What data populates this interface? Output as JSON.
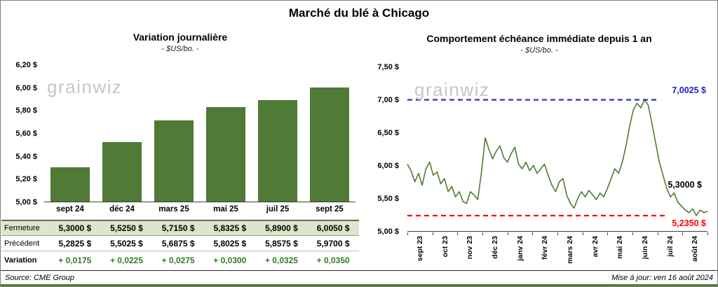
{
  "page": {
    "title": "Marché du blé à Chicago",
    "footer_left": "Source: CME Group",
    "footer_right": "Mise à jour: ven 16 août 2024",
    "watermark": "grainwiz"
  },
  "colors": {
    "bar_green": "#4f7b36",
    "line_green": "#4f7b36",
    "blue_dashed": "#2222cc",
    "red_dashed": "#ff0000",
    "table_row_green": "#dce6cc",
    "variation_green": "#2f7d21"
  },
  "chart_data": [
    {
      "type": "bar",
      "title": "Variation journalière",
      "subtitle": "- $US/bo. -",
      "categories": [
        "sept 24",
        "déc 24",
        "mars 25",
        "mai 25",
        "juil 25",
        "sept 25"
      ],
      "values": [
        5.3,
        5.525,
        5.715,
        5.8325,
        5.89,
        6.005
      ],
      "ylim": [
        5.0,
        6.2
      ],
      "yticks": [
        "6,20 $",
        "6,00 $",
        "5,80 $",
        "5,60 $",
        "5,40 $",
        "5,20 $",
        "5,00 $"
      ],
      "grid": false,
      "table": {
        "rows": [
          {
            "label": "Fermeture",
            "values": [
              "5,3000  $",
              "5,5250  $",
              "5,7150  $",
              "5,8325  $",
              "5,8900  $",
              "6,0050  $"
            ]
          },
          {
            "label": "Précédent",
            "values": [
              "5,2825  $",
              "5,5025  $",
              "5,6875  $",
              "5,8025  $",
              "5,8575  $",
              "5,9700  $"
            ]
          },
          {
            "label": "Variation",
            "values": [
              "+ 0,0175",
              "+ 0,0225",
              "+ 0,0275",
              "+ 0,0300",
              "+ 0,0325",
              "+ 0,0350"
            ]
          }
        ]
      }
    },
    {
      "type": "line",
      "title": "Comportement échéance immédiate depuis 1 an",
      "subtitle": "- $US/bo. -",
      "x_labels": [
        "sept 23",
        "oct 23",
        "nov 23",
        "déc 23",
        "janv 24",
        "févr 24",
        "mars 24",
        "avr 24",
        "mai 24",
        "juin 24",
        "juil 24",
        "août 24"
      ],
      "ylim": [
        5.0,
        7.5
      ],
      "yticks": [
        "7,50 $",
        "7,00 $",
        "6,50 $",
        "6,00 $",
        "5,50 $",
        "5,00 $"
      ],
      "grid": false,
      "values": [
        6.02,
        5.92,
        5.75,
        5.88,
        5.7,
        5.95,
        6.05,
        5.85,
        5.9,
        5.72,
        5.8,
        5.6,
        5.68,
        5.52,
        5.6,
        5.45,
        5.42,
        5.6,
        5.55,
        5.48,
        5.9,
        6.42,
        6.25,
        6.1,
        6.22,
        6.3,
        6.12,
        6.05,
        6.18,
        6.28,
        6.02,
        5.95,
        6.05,
        5.92,
        6.0,
        5.88,
        5.95,
        6.02,
        5.85,
        5.7,
        5.6,
        5.75,
        5.8,
        5.55,
        5.42,
        5.35,
        5.5,
        5.6,
        5.52,
        5.62,
        5.55,
        5.48,
        5.58,
        5.52,
        5.65,
        5.8,
        5.95,
        5.88,
        6.05,
        6.3,
        6.6,
        6.85,
        6.95,
        6.88,
        7.0,
        6.92,
        6.65,
        6.35,
        6.05,
        5.85,
        5.65,
        5.52,
        5.58,
        5.44,
        5.38,
        5.32,
        5.28,
        5.34,
        5.235,
        5.32,
        5.28,
        5.3
      ],
      "annotations": [
        {
          "label": "7,0025 $",
          "value": 7.0025,
          "color": "blue",
          "style": "dashed"
        },
        {
          "label": "5,3000 $",
          "value": 5.3,
          "color": "black",
          "style": "none"
        },
        {
          "label": "5,2350 $",
          "value": 5.235,
          "color": "red",
          "style": "dashed"
        }
      ]
    }
  ]
}
